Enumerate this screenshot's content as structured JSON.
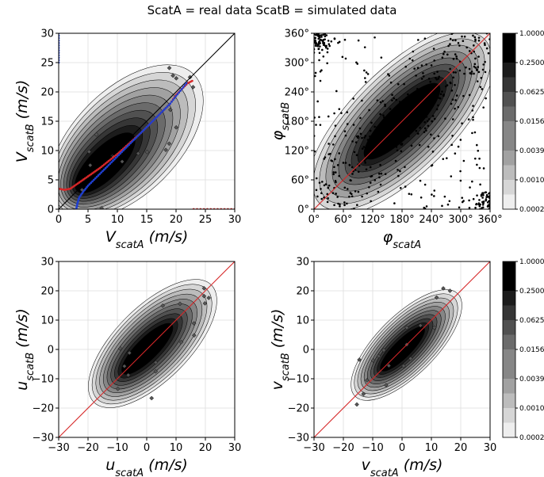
{
  "suptitle": "ScatA = real data ScatB = simulated data",
  "chart_data": [
    {
      "id": "speed",
      "type": "heatmap",
      "subtype": "2D histogram contour (log density) with binned means and 1:1 line",
      "xlabel": "V_scatA (m/s)",
      "ylabel": "V_scatB (m/s)",
      "xlim": [
        0,
        30
      ],
      "ylim": [
        0,
        30
      ],
      "xticks": [
        "0",
        "5",
        "10",
        "15",
        "20",
        "25",
        "30"
      ],
      "yticks": [
        "0",
        "5",
        "10",
        "15",
        "20",
        "25",
        "30"
      ],
      "grid": true,
      "reference_line": {
        "from": [
          0,
          0
        ],
        "to": [
          30,
          30
        ],
        "color": "#000000"
      },
      "density_core": {
        "center": [
          7.5,
          7.5
        ],
        "extent_along": [
          0,
          23
        ],
        "spread_across": 3.2
      },
      "red_binned_mean": {
        "x": [
          0,
          1,
          2,
          3,
          4,
          5,
          6,
          7,
          8,
          9,
          10,
          11,
          12,
          13,
          14,
          15,
          16,
          17,
          18,
          19,
          20,
          21,
          22,
          23
        ],
        "y": [
          3.5,
          3.3,
          3.5,
          4.2,
          4.9,
          5.6,
          6.3,
          7.0,
          7.8,
          8.6,
          9.4,
          10.3,
          11.2,
          12.1,
          13.0,
          14.0,
          15.0,
          16.0,
          17.0,
          18.0,
          19.5,
          20.5,
          21.5,
          22.0
        ],
        "tail": {
          "x": [
            23,
            30
          ],
          "y": [
            0,
            0
          ]
        }
      },
      "blue_binned_mean": {
        "x": [
          3.0,
          3.2,
          3.5,
          4.2,
          5.0,
          6.0,
          7.0,
          8.0,
          9.0,
          10.0,
          11.0,
          12.0,
          13.0,
          14.0,
          15.0,
          16.0,
          17.0,
          18.0,
          19.0,
          20.0,
          21.0,
          22.0
        ],
        "y": [
          0,
          1,
          2,
          3,
          4,
          5,
          6,
          7,
          8,
          9,
          10,
          11,
          12,
          13,
          14,
          15,
          16,
          17,
          18,
          19.3,
          20.5,
          21.8
        ],
        "tail": {
          "x": [
            0,
            0
          ],
          "y": [
            25,
            30
          ]
        }
      },
      "colors": {
        "red": "#d62728",
        "blue": "#1f3fd0"
      }
    },
    {
      "id": "direction",
      "type": "heatmap",
      "subtype": "2D histogram of wind direction with scatter of sparse points and 1:1 line",
      "xlabel": "φ_scatA",
      "ylabel": "φ_scatB",
      "xlim": [
        0,
        360
      ],
      "ylim": [
        0,
        360
      ],
      "xticks": [
        "0°",
        "60°",
        "120°",
        "180°",
        "240°",
        "300°",
        "360°"
      ],
      "yticks": [
        "0°",
        "60°",
        "120°",
        "180°",
        "240°",
        "300°",
        "360°"
      ],
      "grid": true,
      "reference_line": {
        "from": [
          0,
          0
        ],
        "to": [
          360,
          360
        ],
        "color": "#d62728"
      },
      "density_core": {
        "center": [
          180,
          180
        ],
        "extent_along": [
          0,
          360
        ],
        "spread_across": 38
      },
      "corner_clusters": [
        [
          10,
          345
        ],
        [
          350,
          15
        ]
      ],
      "colorbar": {
        "ticks": [
          "1.0000",
          "0.2500",
          "0.0625",
          "0.0156",
          "0.0039",
          "0.0010",
          "0.0002"
        ],
        "scale": "log"
      }
    },
    {
      "id": "u_component",
      "type": "heatmap",
      "subtype": "2D histogram contour (log density) with 1:1 line",
      "xlabel": "u_scatA (m/s)",
      "ylabel": "u_scatB (m/s)",
      "xlim": [
        -30,
        30
      ],
      "ylim": [
        -30,
        30
      ],
      "xticks": [
        "−30",
        "−20",
        "−10",
        "0",
        "10",
        "20",
        "30"
      ],
      "yticks": [
        "−30",
        "−20",
        "−10",
        "0",
        "10",
        "20",
        "30"
      ],
      "grid": true,
      "reference_line": {
        "from": [
          -30,
          -30
        ],
        "to": [
          30,
          30
        ],
        "color": "#d62728"
      },
      "density_core": {
        "center": [
          0,
          0
        ],
        "extent_along": [
          -18,
          22
        ],
        "spread_across": 4.5
      }
    },
    {
      "id": "v_component",
      "type": "heatmap",
      "subtype": "2D histogram contour (log density) with 1:1 line",
      "xlabel": "v_scatA (m/s)",
      "ylabel": "v_scatB (m/s)",
      "xlim": [
        -30,
        30
      ],
      "ylim": [
        -30,
        30
      ],
      "xticks": [
        "−30",
        "−20",
        "−10",
        "0",
        "10",
        "20",
        "30"
      ],
      "yticks": [
        "−30",
        "−20",
        "−10",
        "0",
        "10",
        "20",
        "30"
      ],
      "grid": true,
      "reference_line": {
        "from": [
          -30,
          -30
        ],
        "to": [
          30,
          30
        ],
        "color": "#d62728"
      },
      "density_core": {
        "center": [
          0,
          0
        ],
        "extent_along": [
          -16,
          19
        ],
        "spread_across": 3.6
      },
      "colorbar": {
        "ticks": [
          "1.0000",
          "0.2500",
          "0.0625",
          "0.0156",
          "0.0039",
          "0.0010",
          "0.0002"
        ],
        "scale": "log"
      }
    }
  ]
}
